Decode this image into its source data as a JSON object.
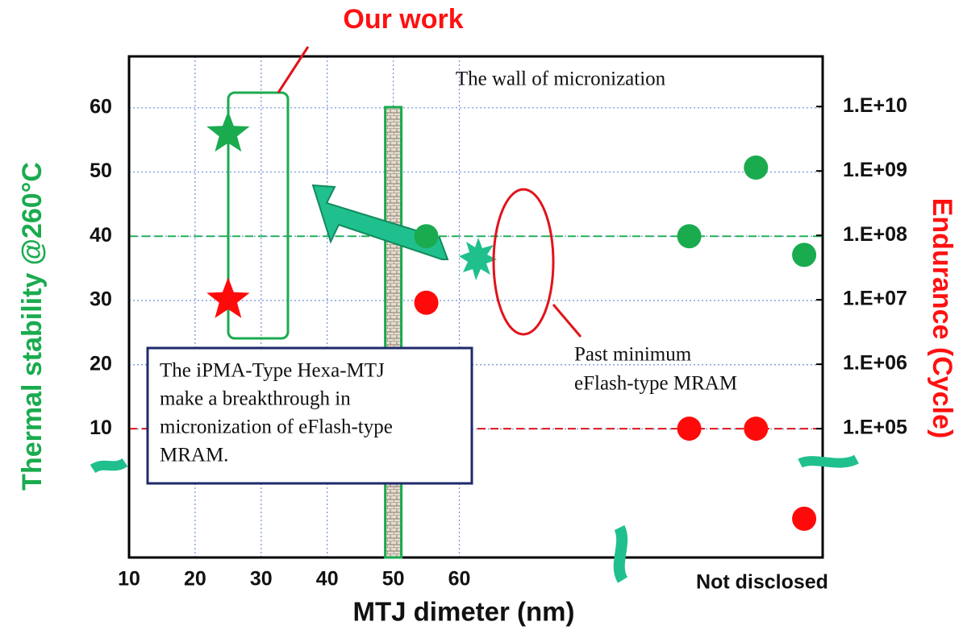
{
  "chart_data": {
    "type": "scatter",
    "title": "Our work",
    "x_label": "MTJ dimeter (nm)",
    "y_label": "Thermal stability @260°C",
    "y2_label": "Endurance (Cycle)",
    "wall_label": "The wall of micronization",
    "wall_x": 50,
    "past_label": [
      "Past minimum",
      "eFlash-type MRAM"
    ],
    "box_text": [
      "The iPMA-Type Hexa-MTJ",
      "make a breakthrough in",
      "micronization of eFlash-type",
      "MRAM."
    ],
    "not_disclosed": "Not disclosed",
    "xlim": [
      10,
      115
    ],
    "xticks": [
      10,
      20,
      30,
      40,
      50,
      60
    ],
    "ylim": [
      -10,
      68
    ],
    "yticks": [
      10,
      20,
      30,
      40,
      50,
      60
    ],
    "y2log": true,
    "y2lim": [
      1000,
      60000000000
    ],
    "y2ticks": [
      {
        "value": 100000,
        "label": "1.E+05"
      },
      {
        "value": 1000000,
        "label": "1.E+06"
      },
      {
        "value": 10000000,
        "label": "1.E+07"
      },
      {
        "value": 100000000,
        "label": "1.E+08"
      },
      {
        "value": 1000000000,
        "label": "1.E+09"
      },
      {
        "value": 10000000000,
        "label": "1.E+10"
      }
    ],
    "grid": true,
    "hlines": [
      {
        "value": 40,
        "axis": "y",
        "color": "#22b05a"
      },
      {
        "value": 100000,
        "axis": "y2",
        "color": "#e0141b"
      }
    ],
    "series": [
      {
        "color": "#1aab4f",
        "marker": "star",
        "axis": "y",
        "x": [
          25
        ],
        "values": [
          56
        ]
      },
      {
        "color": "#ff0a0a",
        "marker": "star",
        "axis": "y2",
        "x": [
          25
        ],
        "values": [
          10000000
        ]
      },
      {
        "color": "#1aab4f",
        "marker": "circle",
        "axis": "y",
        "x": [
          55,
          94.8,
          104.9,
          112.2
        ],
        "values": [
          40,
          40,
          50.7,
          37.1
        ]
      },
      {
        "color": "#ff0a0a",
        "marker": "circle",
        "axis": "y2",
        "x": [
          55,
          94.8,
          104.9,
          112.2
        ],
        "values": [
          9000000,
          100000,
          100000,
          4000
        ]
      }
    ]
  }
}
